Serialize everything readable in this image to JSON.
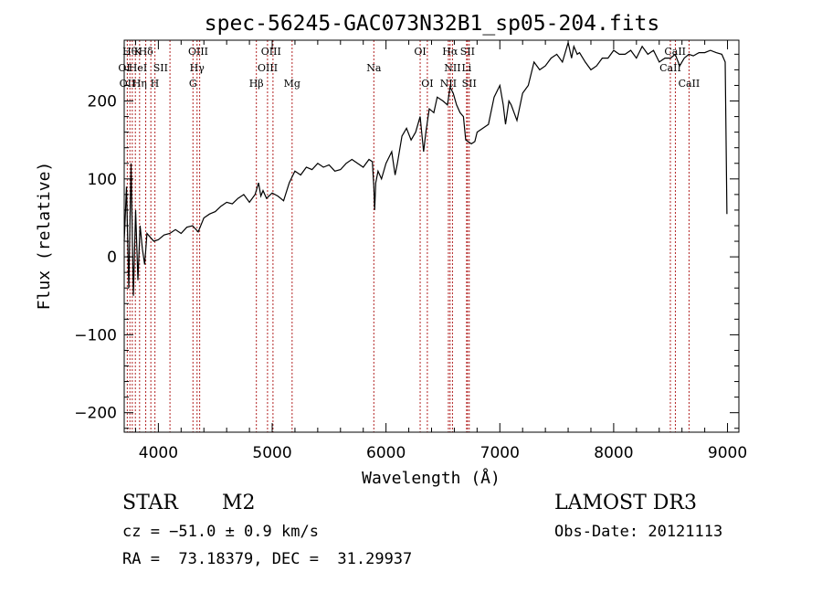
{
  "chart_data": {
    "type": "line",
    "title": "spec-56245-GAC073N32B1_sp05-204.fits",
    "xlabel": "Wavelength (Å)",
    "ylabel": "Flux (relative)",
    "xlim": [
      3700,
      9100
    ],
    "ylim": [
      -225,
      278
    ],
    "xticks": [
      4000,
      5000,
      6000,
      7000,
      8000,
      9000
    ],
    "xtick_labels": [
      "4000",
      "5000",
      "6000",
      "7000",
      "8000",
      "9000"
    ],
    "yticks": [
      -200,
      -100,
      0,
      100,
      200
    ],
    "ytick_labels": [
      "−200",
      "−100",
      "0",
      "100",
      "200"
    ],
    "grid": false,
    "series": [
      {
        "x": [
          3700,
          3720,
          3740,
          3760,
          3780,
          3800,
          3820,
          3840,
          3860,
          3880,
          3900,
          3930,
          3960,
          4000,
          4050,
          4100,
          4150,
          4200,
          4250,
          4300,
          4350,
          4400,
          4450,
          4500,
          4550,
          4600,
          4650,
          4700,
          4750,
          4800,
          4850,
          4880,
          4900,
          4920,
          4950,
          5000,
          5050,
          5100,
          5150,
          5200,
          5250,
          5300,
          5350,
          5400,
          5450,
          5500,
          5550,
          5600,
          5650,
          5700,
          5750,
          5800,
          5850,
          5880,
          5893,
          5900,
          5910,
          5930,
          5960,
          6000,
          6050,
          6080,
          6100,
          6140,
          6180,
          6220,
          6260,
          6300,
          6330,
          6350,
          6380,
          6420,
          6450,
          6500,
          6540,
          6563,
          6590,
          6620,
          6650,
          6680,
          6700,
          6720,
          6750,
          6780,
          6800,
          6850,
          6900,
          6950,
          7000,
          7030,
          7050,
          7080,
          7100,
          7150,
          7200,
          7250,
          7300,
          7350,
          7400,
          7450,
          7500,
          7550,
          7600,
          7630,
          7650,
          7680,
          7700,
          7750,
          7800,
          7850,
          7900,
          7950,
          8000,
          8050,
          8100,
          8150,
          8200,
          8250,
          8300,
          8350,
          8400,
          8450,
          8500,
          8540,
          8580,
          8620,
          8660,
          8700,
          8750,
          8800,
          8850,
          8900,
          8950,
          8980,
          8995
        ],
        "y": [
          20,
          90,
          -40,
          120,
          -50,
          60,
          -30,
          40,
          10,
          -10,
          30,
          25,
          20,
          22,
          28,
          30,
          35,
          30,
          38,
          40,
          32,
          50,
          55,
          58,
          65,
          70,
          68,
          75,
          80,
          70,
          80,
          95,
          78,
          85,
          75,
          82,
          78,
          72,
          95,
          110,
          105,
          115,
          112,
          120,
          115,
          118,
          110,
          112,
          120,
          125,
          120,
          115,
          125,
          122,
          90,
          60,
          95,
          110,
          100,
          120,
          135,
          105,
          120,
          155,
          165,
          150,
          160,
          180,
          135,
          160,
          190,
          185,
          205,
          200,
          195,
          218,
          210,
          195,
          185,
          180,
          150,
          148,
          145,
          148,
          160,
          165,
          170,
          205,
          220,
          195,
          170,
          200,
          195,
          175,
          210,
          220,
          250,
          240,
          245,
          255,
          260,
          250,
          275,
          255,
          270,
          260,
          262,
          250,
          240,
          245,
          255,
          255,
          265,
          260,
          260,
          265,
          255,
          270,
          260,
          265,
          250,
          255,
          255,
          260,
          245,
          255,
          260,
          258,
          262,
          262,
          265,
          262,
          260,
          250,
          55
        ]
      }
    ],
    "line_labels": [
      {
        "x": 3750,
        "label": "Hθ",
        "row": 0
      },
      {
        "x": 3820,
        "label": "K",
        "row": 0
      },
      {
        "x": 3890,
        "label": "Hδ",
        "row": 0
      },
      {
        "x": 4350,
        "label": "OIII",
        "row": 0
      },
      {
        "x": 4990,
        "label": "OIII",
        "row": 0
      },
      {
        "x": 6300,
        "label": "OI",
        "row": 0
      },
      {
        "x": 6563,
        "label": "Hα",
        "row": 0
      },
      {
        "x": 6716,
        "label": "SII",
        "row": 0
      },
      {
        "x": 8540,
        "label": "CaII",
        "row": 0
      },
      {
        "x": 3700,
        "label": "OI",
        "row": 1
      },
      {
        "x": 3820,
        "label": "HeI",
        "row": 1
      },
      {
        "x": 4020,
        "label": "SII",
        "row": 1
      },
      {
        "x": 4340,
        "label": "Hγ",
        "row": 1
      },
      {
        "x": 4960,
        "label": "OIII",
        "row": 1
      },
      {
        "x": 5893,
        "label": "Na",
        "row": 1
      },
      {
        "x": 6584,
        "label": "NII",
        "row": 1
      },
      {
        "x": 6708,
        "label": "Li",
        "row": 1
      },
      {
        "x": 8498,
        "label": "CaII",
        "row": 1
      },
      {
        "x": 3728,
        "label": "OII",
        "row": 2
      },
      {
        "x": 3835,
        "label": "Hη",
        "row": 2
      },
      {
        "x": 3968,
        "label": "H",
        "row": 2
      },
      {
        "x": 4304,
        "label": "G",
        "row": 2
      },
      {
        "x": 4861,
        "label": "Hβ",
        "row": 2
      },
      {
        "x": 5175,
        "label": "Mg",
        "row": 2
      },
      {
        "x": 6363,
        "label": "OI",
        "row": 2
      },
      {
        "x": 6548,
        "label": "NII",
        "row": 2
      },
      {
        "x": 6731,
        "label": "SII",
        "row": 2
      },
      {
        "x": 8662,
        "label": "CaII",
        "row": 2
      }
    ],
    "line_markers": [
      3727,
      3750,
      3771,
      3798,
      3835,
      3889,
      3934,
      3970,
      4102,
      4304,
      4340,
      4363,
      4861,
      4959,
      5007,
      5175,
      5893,
      6300,
      6363,
      6548,
      6563,
      6584,
      6708,
      6716,
      6731,
      8498,
      8542,
      8662
    ]
  },
  "footer": {
    "object_type": "STAR",
    "subclass": "M2",
    "survey": "LAMOST DR3",
    "redshift_line": "cz = −51.0 ± 0.9 km/s",
    "obs_date_line": "Obs-Date: 20121113",
    "coords_line": "RA =  73.18379, DEC =  31.29937"
  },
  "colors": {
    "spectrum": "#000000",
    "marker": "#b22222",
    "axes": "#000000"
  }
}
